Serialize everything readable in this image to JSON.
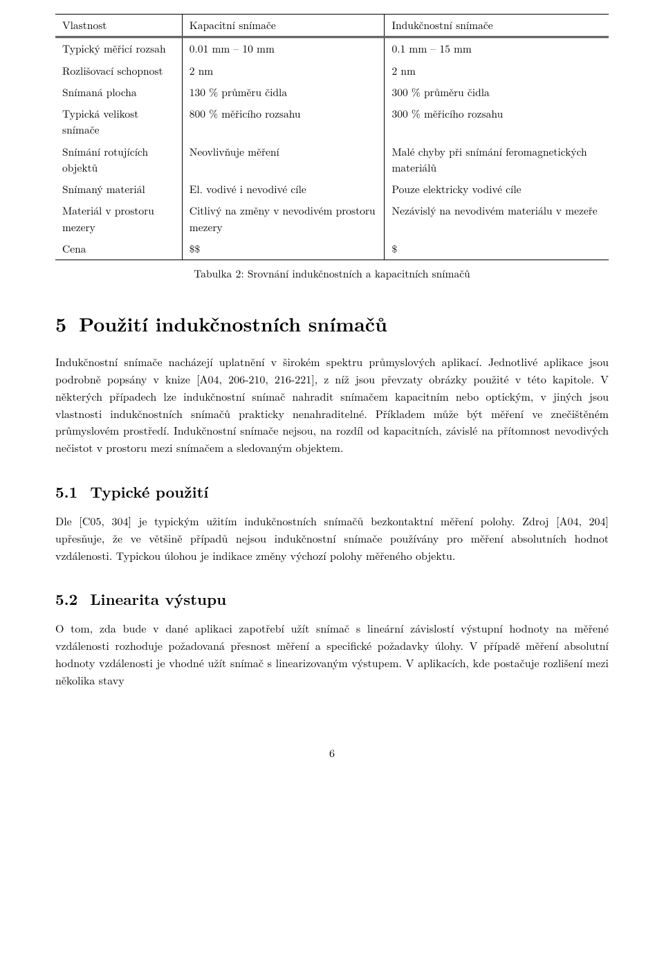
{
  "table": {
    "headers": [
      "Vlastnost",
      "Kapacitní snímače",
      "Indukčnostní snímače"
    ],
    "rows": [
      [
        "Typický měřicí rozsah",
        "0.01 mm – 10 mm",
        "0.1 mm – 15 mm"
      ],
      [
        "Rozlišovací schopnost",
        "2 nm",
        "2 nm"
      ],
      [
        "Snímaná plocha",
        "130 % průměru čidla",
        "300 % průměru čidla"
      ],
      [
        "Typická velikost snímače",
        "800 % měřicího rozsahu",
        "300 % měřicího rozsahu"
      ],
      [
        "Snímání rotujících objektů",
        "Neovlivňuje měření",
        "Malé chyby při snímání feromagnetických materiálů"
      ],
      [
        "Snímaný materiál",
        "El. vodivé i nevodivé cíle",
        "Pouze elektricky vodivé cíle"
      ],
      [
        "Materiál v prostoru mezery",
        "Citlivý na změny v nevodivém prostoru mezery",
        "Nezávislý na nevodivém materiálu v mezeře"
      ],
      [
        "Cena",
        "$$",
        "$"
      ]
    ],
    "caption": "Tabulka 2: Srovnání indukčnostních a kapacitních snímačů"
  },
  "section5": {
    "number": "5",
    "title": "Použití indukčnostních snímačů",
    "paragraph": "Indukčnostní snímače nacházejí uplatnění v širokém spektru průmyslových aplikací. Jednotlivé aplikace jsou podrobně popsány v knize [A04, 206-210, 216-221], z níž jsou převzaty obrázky použité v této kapitole. V některých případech lze indukčnostní snímač nahradit snímačem kapacitním nebo optickým, v jiných jsou vlastnosti indukčnostních snímačů prakticky nenahraditelné. Příkladem může být měření ve znečištěném průmyslovém prostředí. Indukčnostní snímače nejsou, na rozdíl od kapacitních, závislé na přítomnost nevodivých nečistot v prostoru mezi snímačem a sledovaným objektem."
  },
  "section51": {
    "number": "5.1",
    "title": "Typické použití",
    "paragraph": "Dle [C05, 304] je typickým užitím indukčnostních snímačů bezkontaktní měření polohy. Zdroj [A04, 204] upřesňuje, že ve většině případů nejsou indukčnostní snímače používány pro měření absolutních hodnot vzdálenosti. Typickou úlohou je indikace změny výchozí polohy měřeného objektu."
  },
  "section52": {
    "number": "5.2",
    "title": "Linearita výstupu",
    "paragraph": "O tom, zda bude v dané aplikaci zapotřebí užít snímač s lineární závislostí výstupní hodnoty na měřené vzdálenosti rozhoduje požadovaná přesnost měření a specifické požadavky úlohy. V případě měření absolutní hodnoty vzdálenosti je vhodné užít snímač s linearizovaným výstupem. V aplikacích, kde postačuje rozlišení mezi několika stavy"
  },
  "pageNumber": "6"
}
